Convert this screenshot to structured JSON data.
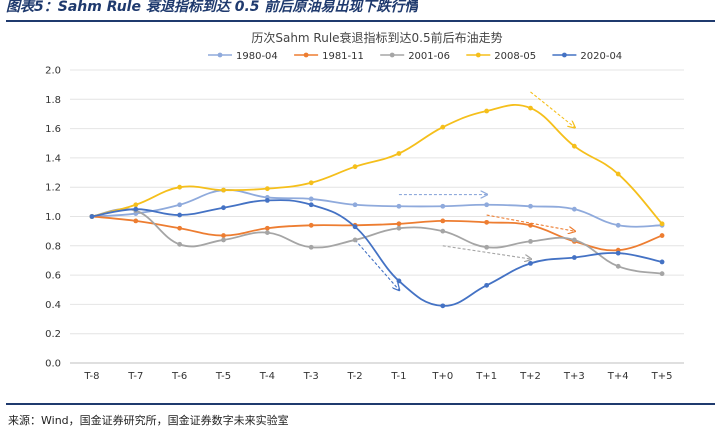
{
  "figure_caption": "图表5：Sahm Rule 衰退指标到达 0.5 前后原油易出现下跌行情",
  "source_note": "来源：Wind，国金证券研究所，国金证券数字未来实验室",
  "chart_data": {
    "type": "line",
    "title": "历次Sahm Rule衰退指标到达0.5前后布油走势",
    "xlabel": "",
    "ylabel": "",
    "categories": [
      "T-8",
      "T-7",
      "T-6",
      "T-5",
      "T-4",
      "T-3",
      "T-2",
      "T-1",
      "T+0",
      "T+1",
      "T+2",
      "T+3",
      "T+4",
      "T+5"
    ],
    "ylim": [
      0,
      2.0
    ],
    "yticks": [
      0.0,
      0.2,
      0.4,
      0.6,
      0.8,
      1.0,
      1.2,
      1.4,
      1.6,
      1.8,
      2.0
    ],
    "ytick_labels": [
      "0.0",
      "0.2",
      "0.4",
      "0.6",
      "0.8",
      "1.0",
      "1.2",
      "1.4",
      "1.6",
      "1.8",
      "2.0"
    ],
    "grid": "horizontal",
    "legend_position": "top",
    "series": [
      {
        "name": "1980-04",
        "color": "#8faadc",
        "values": [
          1.0,
          1.02,
          1.08,
          1.18,
          1.13,
          1.12,
          1.08,
          1.07,
          1.07,
          1.08,
          1.07,
          1.05,
          0.94,
          0.94
        ]
      },
      {
        "name": "1981-11",
        "color": "#ed7d31",
        "values": [
          1.0,
          0.97,
          0.92,
          0.87,
          0.92,
          0.94,
          0.94,
          0.95,
          0.97,
          0.96,
          0.94,
          0.83,
          0.77,
          0.87
        ]
      },
      {
        "name": "2001-06",
        "color": "#a5a5a5",
        "values": [
          1.0,
          1.04,
          0.81,
          0.84,
          0.89,
          0.79,
          0.84,
          0.92,
          0.9,
          0.79,
          0.83,
          0.84,
          0.66,
          0.61
        ]
      },
      {
        "name": "2008-05",
        "color": "#f5bf1b",
        "values": [
          1.0,
          1.08,
          1.2,
          1.18,
          1.19,
          1.23,
          1.34,
          1.43,
          1.61,
          1.72,
          1.74,
          1.48,
          1.29,
          0.95
        ]
      },
      {
        "name": "2020-04",
        "color": "#4472c4",
        "values": [
          1.0,
          1.05,
          1.01,
          1.06,
          1.11,
          1.08,
          0.93,
          0.56,
          0.39,
          0.53,
          0.68,
          0.72,
          0.75,
          0.69
        ]
      }
    ],
    "annotations": [
      {
        "type": "trend-arrow",
        "color": "#4472c4",
        "from": {
          "x": "T-2",
          "y": 0.84
        },
        "to": {
          "x": "T-1",
          "y": 0.5
        }
      },
      {
        "type": "trend-arrow",
        "color": "#8faadc",
        "from": {
          "x": "T-1",
          "y": 1.15
        },
        "to": {
          "x": "T+1",
          "y": 1.15
        }
      },
      {
        "type": "trend-arrow",
        "color": "#ed7d31",
        "from": {
          "x": "T+1",
          "y": 1.01
        },
        "to": {
          "x": "T+3",
          "y": 0.9
        }
      },
      {
        "type": "trend-arrow",
        "color": "#a5a5a5",
        "from": {
          "x": "T+0",
          "y": 0.8
        },
        "to": {
          "x": "T+2",
          "y": 0.71
        }
      },
      {
        "type": "trend-arrow",
        "color": "#f5bf1b",
        "from": {
          "x": "T+2",
          "y": 1.85
        },
        "to": {
          "x": "T+3",
          "y": 1.61
        }
      }
    ]
  }
}
